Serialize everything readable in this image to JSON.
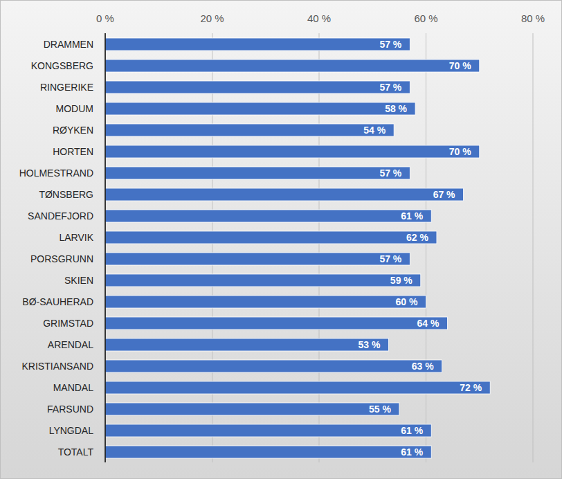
{
  "chart_data": {
    "type": "bar",
    "orientation": "horizontal",
    "categories": [
      "DRAMMEN",
      "KONGSBERG",
      "RINGERIKE",
      "MODUM",
      "RØYKEN",
      "HORTEN",
      "HOLMESTRAND",
      "TØNSBERG",
      "SANDEFJORD",
      "LARVIK",
      "PORSGRUNN",
      "SKIEN",
      "BØ-SAUHERAD",
      "GRIMSTAD",
      "ARENDAL",
      "KRISTIANSAND",
      "MANDAL",
      "FARSUND",
      "LYNGDAL",
      "TOTALT"
    ],
    "values": [
      57,
      70,
      57,
      58,
      54,
      70,
      57,
      67,
      61,
      62,
      57,
      59,
      60,
      64,
      53,
      63,
      72,
      55,
      61,
      61
    ],
    "value_labels": [
      "57 %",
      "70 %",
      "57 %",
      "58 %",
      "54 %",
      "70 %",
      "57 %",
      "67 %",
      "61 %",
      "62 %",
      "57 %",
      "59 %",
      "60 %",
      "64 %",
      "53 %",
      "63 %",
      "72 %",
      "55 %",
      "61 %",
      "61 %"
    ],
    "color": "#4472c4",
    "xlim": [
      0,
      80
    ],
    "xticks": [
      {
        "value": 0,
        "label": "0 %"
      },
      {
        "value": 20,
        "label": "20 %"
      },
      {
        "value": 40,
        "label": "40 %"
      },
      {
        "value": 60,
        "label": "60 %"
      },
      {
        "value": 80,
        "label": "80 %"
      }
    ],
    "grid": true,
    "data_labels": true
  }
}
